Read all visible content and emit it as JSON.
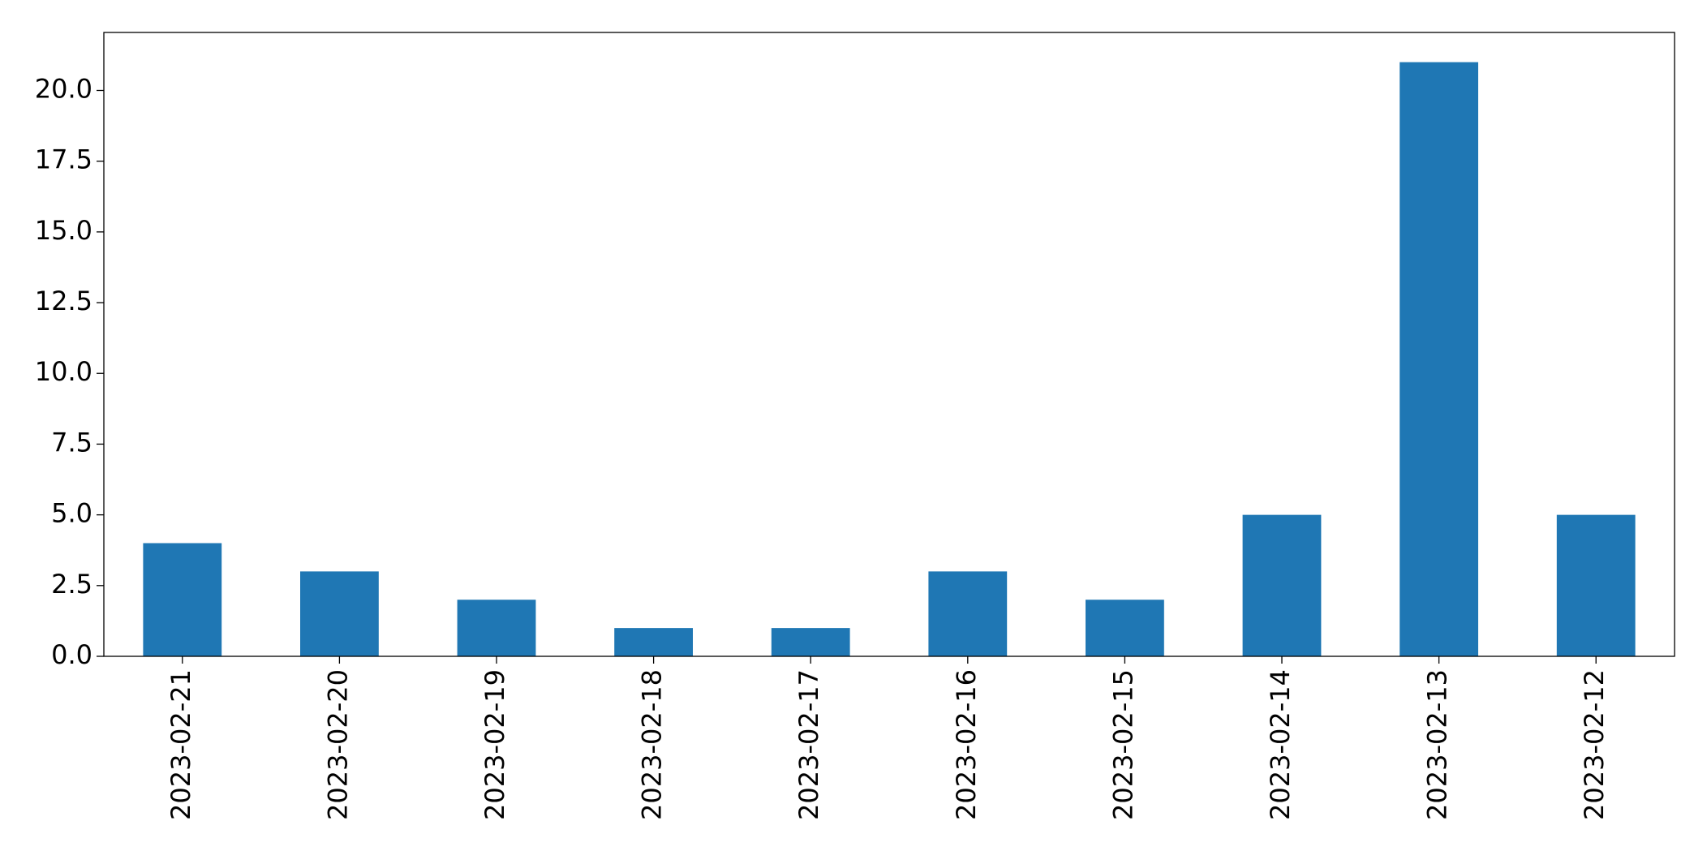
{
  "chart_data": {
    "type": "bar",
    "categories": [
      "2023-02-21",
      "2023-02-20",
      "2023-02-19",
      "2023-02-18",
      "2023-02-17",
      "2023-02-16",
      "2023-02-15",
      "2023-02-14",
      "2023-02-13",
      "2023-02-12"
    ],
    "values": [
      4,
      3,
      2,
      1,
      1,
      3,
      2,
      5,
      21,
      5
    ],
    "color": "#1f77b4",
    "ylim": [
      0,
      22.05
    ],
    "yticks": [
      {
        "value": 0,
        "label": "0.0"
      },
      2.5,
      {
        "value": 5,
        "label": "5.0"
      },
      7.5,
      {
        "value": 10,
        "label": "10.0"
      },
      12.5,
      {
        "value": 15,
        "label": "15.0"
      },
      17.5,
      {
        "value": 20,
        "label": "20.0"
      }
    ],
    "grid": false
  }
}
